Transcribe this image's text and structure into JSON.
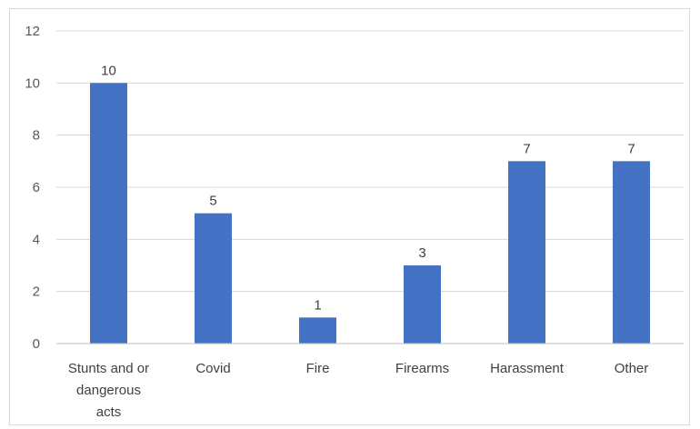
{
  "chart_data": {
    "type": "bar",
    "categories": [
      [
        "Stunts and or",
        "dangerous",
        "acts"
      ],
      [
        "Covid"
      ],
      [
        "Fire"
      ],
      [
        "Firearms"
      ],
      [
        "Harassment"
      ],
      [
        "Other"
      ]
    ],
    "values": [
      10,
      5,
      1,
      3,
      7,
      7
    ],
    "ylim": [
      0,
      12
    ],
    "yticks": [
      0,
      2,
      4,
      6,
      8,
      10,
      12
    ],
    "grid": true,
    "legend": "none",
    "colors": {
      "bar": "#4472c4",
      "grid": "#d9d9d9",
      "axis": "#bfbfbf"
    }
  }
}
